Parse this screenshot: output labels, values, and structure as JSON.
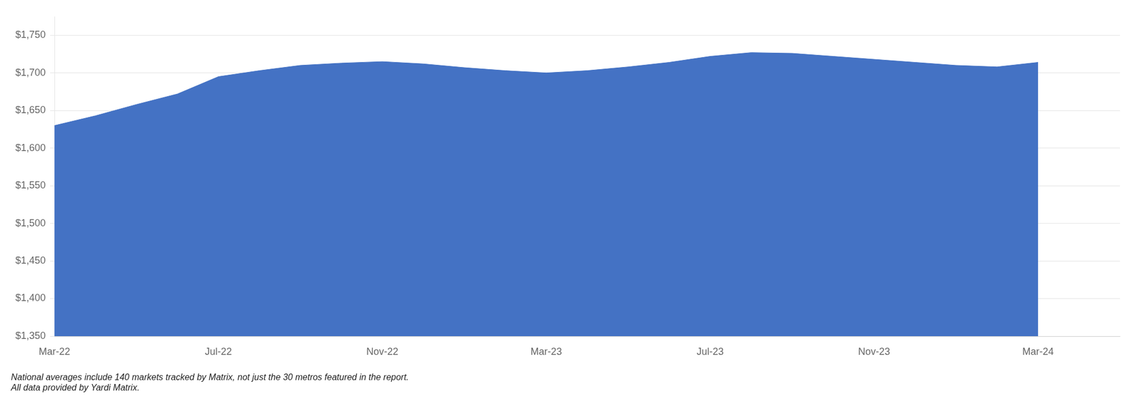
{
  "chart_data": {
    "type": "area",
    "x": [
      0,
      1,
      2,
      3,
      4,
      5,
      6,
      7,
      8,
      9,
      10,
      11,
      12,
      13,
      14,
      15,
      16,
      17,
      18,
      19,
      20,
      21,
      22,
      23,
      24
    ],
    "values": [
      1630,
      1643,
      1658,
      1672,
      1695,
      1703,
      1710,
      1713,
      1715,
      1712,
      1707,
      1703,
      1700,
      1703,
      1708,
      1714,
      1722,
      1727,
      1726,
      1722,
      1718,
      1714,
      1710,
      1708,
      1714
    ],
    "color": "#4472C4",
    "xlim": [
      0,
      26
    ],
    "xticks": [
      {
        "value": 0,
        "label": "Mar-22"
      },
      {
        "value": 4,
        "label": "Jul-22"
      },
      {
        "value": 8,
        "label": "Nov-22"
      },
      {
        "value": 12,
        "label": "Mar-23"
      },
      {
        "value": 16,
        "label": "Jul-23"
      },
      {
        "value": 20,
        "label": "Nov-23"
      },
      {
        "value": 24,
        "label": "Mar-24"
      }
    ],
    "ylim": [
      1350,
      1775
    ],
    "yticks": [
      {
        "value": 1350,
        "label": "$1,350"
      },
      {
        "value": 1400,
        "label": "$1,400"
      },
      {
        "value": 1450,
        "label": "$1,450"
      },
      {
        "value": 1500,
        "label": "$1,500"
      },
      {
        "value": 1550,
        "label": "$1,550"
      },
      {
        "value": 1600,
        "label": "$1,600"
      },
      {
        "value": 1650,
        "label": "$1,650"
      },
      {
        "value": 1700,
        "label": "$1,700"
      },
      {
        "value": 1750,
        "label": "$1,750"
      }
    ],
    "grid": true,
    "annotations": [
      "National averages include 140 markets tracked by Matrix, not just the 30 metros featured in the report.",
      "All data provided by Yardi Matrix."
    ]
  }
}
